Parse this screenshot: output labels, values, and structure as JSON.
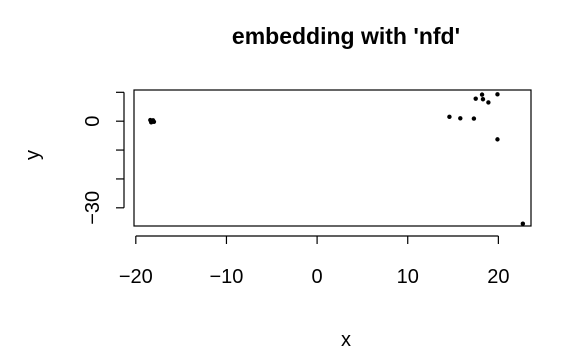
{
  "chart_data": {
    "type": "scatter",
    "title": "embedding with 'nfd'",
    "xlabel": "x",
    "ylabel": "y",
    "xlim": [
      -20.2,
      23.6
    ],
    "ylim": [
      -36.3,
      10.8
    ],
    "xticks": [
      -20,
      -10,
      0,
      10,
      20
    ],
    "xtick_labels": [
      "−20",
      "−10",
      "0",
      "10",
      "20"
    ],
    "yticks": [
      -30,
      0
    ],
    "ytick_labels": [
      "−30",
      "0"
    ],
    "ytick_minor": [
      -20,
      -10,
      10
    ],
    "grid": false,
    "legend": "none",
    "point_color": "#000000",
    "points": [
      {
        "x": -18.4,
        "y": 0.4
      },
      {
        "x": -18.2,
        "y": 0.1
      },
      {
        "x": -18.0,
        "y": -0.2
      },
      {
        "x": -18.3,
        "y": -0.4
      },
      {
        "x": -18.1,
        "y": 0.3
      },
      {
        "x": 14.6,
        "y": 1.5
      },
      {
        "x": 15.8,
        "y": 1.0
      },
      {
        "x": 17.3,
        "y": 0.9
      },
      {
        "x": 17.5,
        "y": 7.8
      },
      {
        "x": 18.2,
        "y": 9.2
      },
      {
        "x": 18.3,
        "y": 7.6
      },
      {
        "x": 18.9,
        "y": 6.5
      },
      {
        "x": 19.9,
        "y": 9.3
      },
      {
        "x": 19.9,
        "y": -6.3
      },
      {
        "x": 22.7,
        "y": -35.5
      }
    ]
  }
}
